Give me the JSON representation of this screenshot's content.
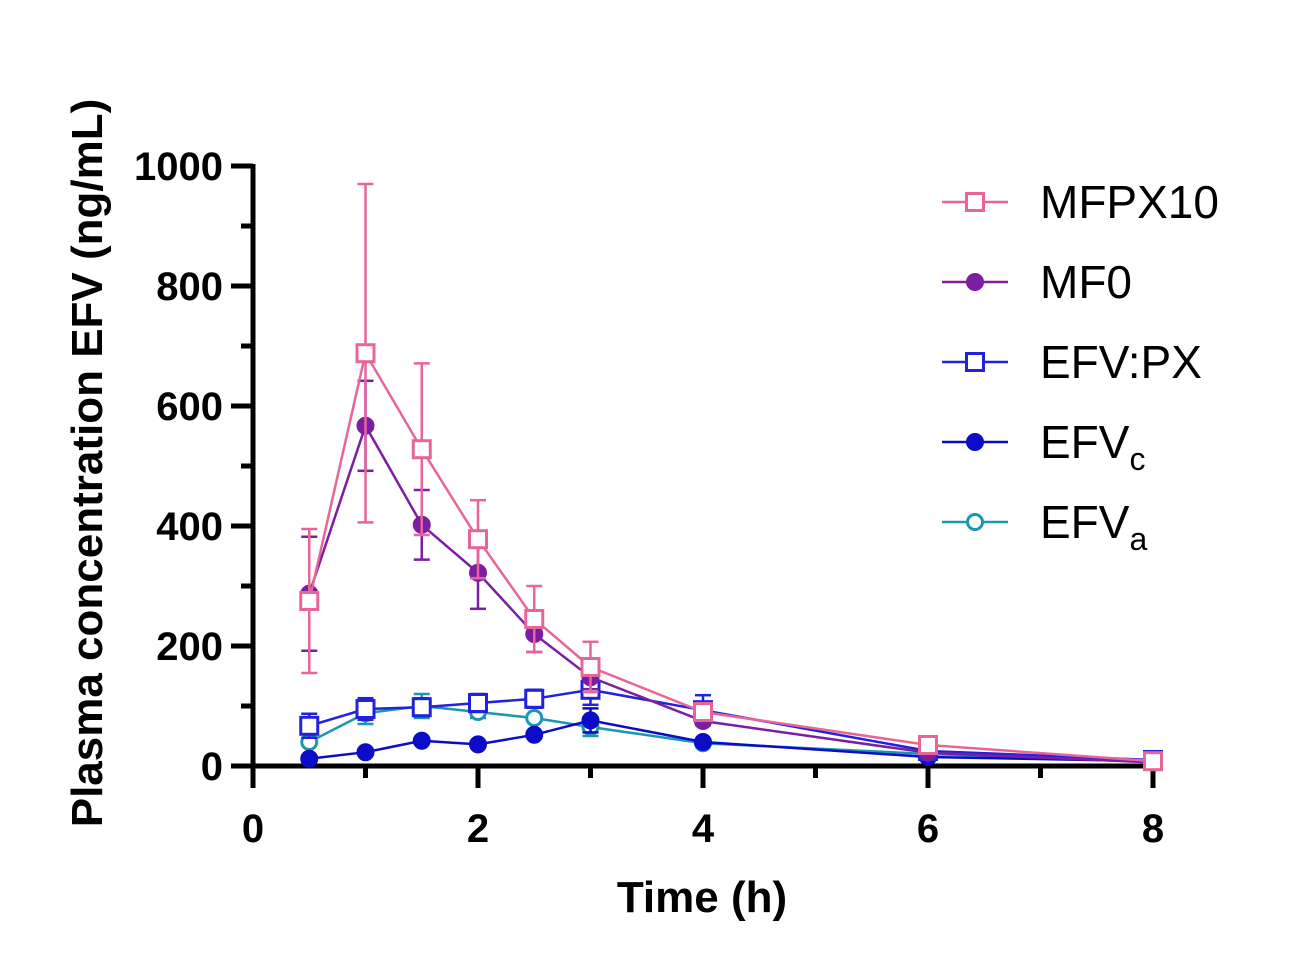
{
  "chart_data": {
    "type": "line",
    "xlabel": "Time (h)",
    "ylabel": "Plasma concentration EFV  (ng/mL)",
    "xlim": [
      0,
      8
    ],
    "ylim": [
      0,
      1000
    ],
    "x_ticks": [
      "0",
      "2",
      "4",
      "6",
      "8"
    ],
    "y_ticks": [
      "0",
      "200",
      "400",
      "600",
      "800",
      "1000"
    ],
    "legend_position": "top-right",
    "grid": false,
    "series": [
      {
        "name": "MFPX10",
        "legend_main": "MFPX10",
        "legend_sub": "",
        "color": "#e8659a",
        "marker": "open-square",
        "x": [
          0.5,
          1,
          1.5,
          2,
          2.5,
          3,
          4,
          6,
          8
        ],
        "y": [
          275,
          688,
          528,
          378,
          245,
          165,
          90,
          35,
          8
        ],
        "err": [
          120,
          282,
          143,
          65,
          55,
          42,
          0,
          0,
          0
        ]
      },
      {
        "name": "MF0",
        "legend_main": "MF0",
        "legend_sub": "",
        "color": "#7b1ea3",
        "marker": "filled-circle",
        "x": [
          0.5,
          1,
          1.5,
          2,
          2.5,
          3,
          4,
          6,
          8
        ],
        "y": [
          287,
          567,
          402,
          322,
          220,
          148,
          75,
          22,
          6
        ],
        "err": [
          95,
          75,
          58,
          60,
          30,
          20,
          0,
          0,
          0
        ]
      },
      {
        "name": "EFV:PX",
        "legend_main": "EFV:PX",
        "legend_sub": "",
        "color": "#2222dd",
        "marker": "open-square",
        "x": [
          0.5,
          1,
          1.5,
          2,
          2.5,
          3,
          4,
          6,
          8
        ],
        "y": [
          67,
          95,
          98,
          105,
          112,
          127,
          93,
          25,
          10
        ],
        "err": [
          20,
          18,
          15,
          15,
          15,
          25,
          25,
          0,
          0
        ]
      },
      {
        "name": "EFVc",
        "legend_main": "EFV",
        "legend_sub": "c",
        "color": "#0b0bc8",
        "marker": "filled-circle",
        "x": [
          0.5,
          1,
          1.5,
          2,
          2.5,
          3,
          4,
          6,
          8
        ],
        "y": [
          12,
          23,
          42,
          36,
          52,
          76,
          40,
          15,
          8
        ],
        "err": [
          0,
          0,
          0,
          0,
          0,
          20,
          0,
          0,
          0
        ]
      },
      {
        "name": "EFVa",
        "legend_main": "EFV",
        "legend_sub": "a",
        "color": "#1b97b0",
        "marker": "open-circle",
        "x": [
          0.5,
          1,
          1.5,
          2,
          2.5,
          3,
          4,
          6,
          8
        ],
        "y": [
          40,
          88,
          100,
          90,
          80,
          65,
          38,
          20,
          8
        ],
        "err": [
          0,
          18,
          20,
          10,
          0,
          15,
          0,
          0,
          0
        ]
      }
    ]
  }
}
